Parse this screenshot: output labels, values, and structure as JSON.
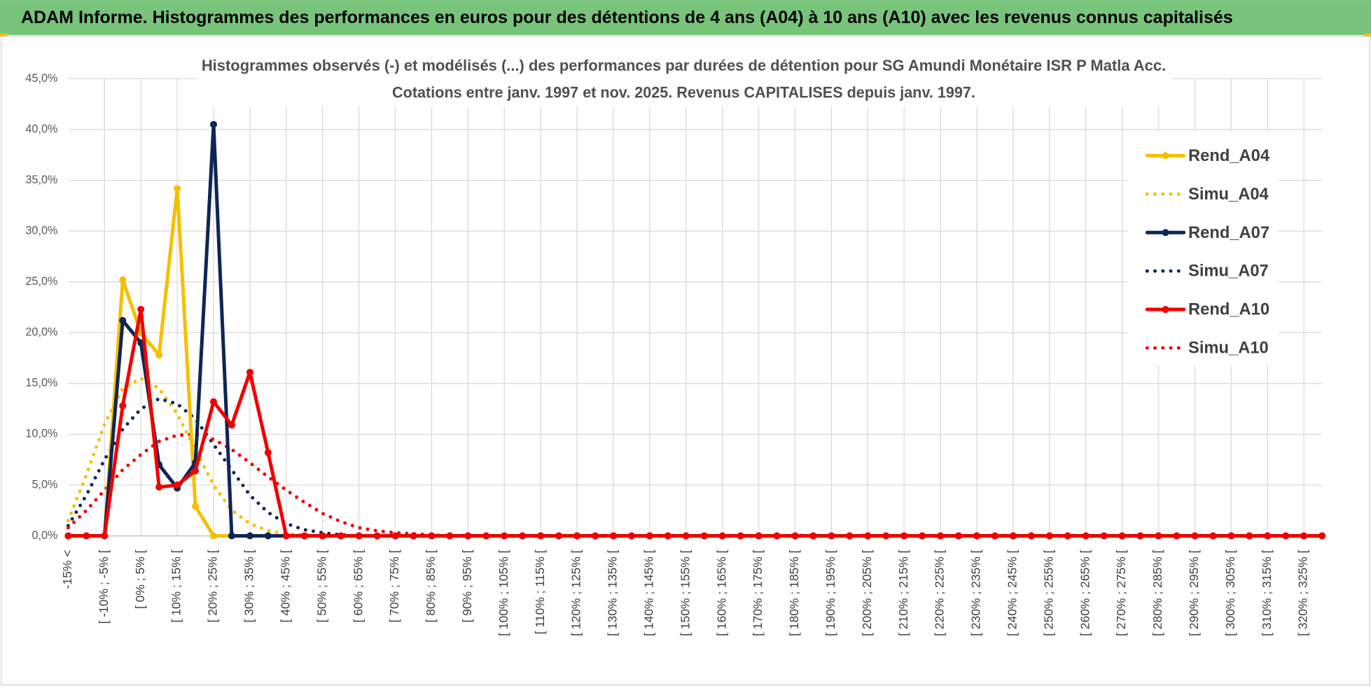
{
  "chart_data": {
    "type": "line",
    "header": "ADAM Informe. Histogrammes des performances en euros pour des détentions de 4 ans (A04) à 10 ans (A10) avec les revenus connus capitalisés",
    "title": "Histogrammes observés (-) et modélisés (...) des performances par durées de détention pour SG Amundi Monétaire ISR P Matla Acc.",
    "subtitle": "Cotations entre janv. 1997 et nov. 2025. Revenus CAPITALISES depuis janv. 1997.",
    "categories": [
      "-15% <",
      null,
      "[ -10% ; -5% [",
      null,
      "[ 0% ; 5% [",
      null,
      "[ 10% ; 15% [",
      null,
      "[ 20% ; 25% [",
      null,
      "[ 30% ; 35% [",
      null,
      "[ 40% ; 45% [",
      null,
      "[ 50% ; 55% [",
      null,
      "[ 60% ; 65% [",
      null,
      "[ 70% ; 75% [",
      null,
      "[ 80% ; 85% [",
      null,
      "[ 90% ; 95% [",
      null,
      "[ 100% ; 105% [",
      null,
      "[ 110% ; 115% [",
      null,
      "[ 120% ; 125% [",
      null,
      "[ 130% ; 135% [",
      null,
      "[ 140% ; 145% [",
      null,
      "[ 150% ; 155% [",
      null,
      "[ 160% ; 165% [",
      null,
      "[ 170% ; 175% [",
      null,
      "[ 180% ; 185% [",
      null,
      "[ 190% ; 195% [",
      null,
      "[ 200% ; 205% [",
      null,
      "[ 210% ; 215% [",
      null,
      "[ 220% ; 225% [",
      null,
      "[ 230% ; 235% [",
      null,
      "[ 240% ; 245% [",
      null,
      "[ 250% ; 255% [",
      null,
      "[ 260% ; 265% [",
      null,
      "[ 270% ; 275% [",
      null,
      "[ 280% ; 285% [",
      null,
      "[ 290% ; 295% [",
      null,
      "[ 300% ; 305% [",
      null,
      "[ 310% ; 315% [",
      null,
      "[ 320% ; 325% [",
      null
    ],
    "series": [
      {
        "name": "Rend_A04",
        "color": "#f5bf00",
        "style": "solid",
        "markers": true,
        "values": [
          0,
          0,
          0,
          25.2,
          20,
          17.8,
          34.2,
          2.9,
          0,
          0,
          0,
          0,
          0,
          0,
          0,
          0,
          0,
          0,
          0,
          0,
          0,
          0,
          0,
          0,
          0,
          0,
          0,
          0,
          0,
          0,
          0,
          0,
          0,
          0,
          0,
          0,
          0,
          0,
          0,
          0,
          0,
          0,
          0,
          0,
          0,
          0,
          0,
          0,
          0,
          0,
          0,
          0,
          0,
          0,
          0,
          0,
          0,
          0,
          0,
          0,
          0,
          0,
          0,
          0,
          0,
          0,
          0,
          0,
          0,
          0
        ]
      },
      {
        "name": "Simu_A04",
        "color": "#f5bf00",
        "style": "dotted",
        "markers": false,
        "values": [
          1.5,
          6,
          11,
          14.5,
          15.5,
          14.5,
          12,
          8.5,
          5,
          2.5,
          1.2,
          0.5,
          0.2,
          0.1,
          0,
          0,
          0,
          0,
          0,
          0,
          0,
          0,
          0,
          0,
          0,
          0,
          0,
          0,
          0,
          0,
          0,
          0,
          0,
          0,
          0,
          0,
          0,
          0,
          0,
          0,
          0,
          0,
          0,
          0,
          0,
          0,
          0,
          0,
          0,
          0,
          0,
          0,
          0,
          0,
          0,
          0,
          0,
          0,
          0,
          0,
          0,
          0,
          0,
          0,
          0,
          0,
          0,
          0,
          0,
          0
        ]
      },
      {
        "name": "Rend_A07",
        "color": "#0e2557",
        "style": "solid",
        "markers": true,
        "values": [
          0,
          0,
          0,
          21.2,
          19,
          7,
          4.7,
          7.2,
          40.5,
          0,
          0,
          0,
          0,
          0,
          0,
          0,
          0,
          0,
          0,
          0,
          0,
          0,
          0,
          0,
          0,
          0,
          0,
          0,
          0,
          0,
          0,
          0,
          0,
          0,
          0,
          0,
          0,
          0,
          0,
          0,
          0,
          0,
          0,
          0,
          0,
          0,
          0,
          0,
          0,
          0,
          0,
          0,
          0,
          0,
          0,
          0,
          0,
          0,
          0,
          0,
          0,
          0,
          0,
          0,
          0,
          0,
          0,
          0,
          0,
          0
        ]
      },
      {
        "name": "Simu_A07",
        "color": "#0e2557",
        "style": "dotted",
        "markers": false,
        "values": [
          1,
          4,
          7.5,
          10.5,
          12.5,
          13.5,
          13,
          11.5,
          9,
          6.5,
          4,
          2.3,
          1.2,
          0.6,
          0.3,
          0.1,
          0,
          0,
          0,
          0,
          0,
          0,
          0,
          0,
          0,
          0,
          0,
          0,
          0,
          0,
          0,
          0,
          0,
          0,
          0,
          0,
          0,
          0,
          0,
          0,
          0,
          0,
          0,
          0,
          0,
          0,
          0,
          0,
          0,
          0,
          0,
          0,
          0,
          0,
          0,
          0,
          0,
          0,
          0,
          0,
          0,
          0,
          0,
          0,
          0,
          0,
          0,
          0,
          0,
          0
        ]
      },
      {
        "name": "Rend_A10",
        "color": "#f00000",
        "style": "solid",
        "markers": true,
        "values": [
          0,
          0,
          0,
          12.8,
          22.3,
          4.8,
          5,
          6.4,
          13.2,
          10.9,
          16.1,
          8.2,
          0,
          0,
          0,
          0,
          0,
          0,
          0,
          0,
          0,
          0,
          0,
          0,
          0,
          0,
          0,
          0,
          0,
          0,
          0,
          0,
          0,
          0,
          0,
          0,
          0,
          0,
          0,
          0,
          0,
          0,
          0,
          0,
          0,
          0,
          0,
          0,
          0,
          0,
          0,
          0,
          0,
          0,
          0,
          0,
          0,
          0,
          0,
          0,
          0,
          0,
          0,
          0,
          0,
          0,
          0,
          0,
          0,
          0
        ]
      },
      {
        "name": "Simu_A10",
        "color": "#f00000",
        "style": "dotted",
        "markers": false,
        "values": [
          0.8,
          2.5,
          4.5,
          6.5,
          8,
          9.3,
          9.9,
          10,
          9.5,
          8.5,
          7.2,
          5.8,
          4.5,
          3.3,
          2.2,
          1.4,
          0.8,
          0.5,
          0.3,
          0.2,
          0.1,
          0,
          0,
          0,
          0,
          0,
          0,
          0,
          0,
          0,
          0,
          0,
          0,
          0,
          0,
          0,
          0,
          0,
          0,
          0,
          0,
          0,
          0,
          0,
          0,
          0,
          0,
          0,
          0,
          0,
          0,
          0,
          0,
          0,
          0,
          0,
          0,
          0,
          0,
          0,
          0,
          0,
          0,
          0,
          0,
          0,
          0,
          0,
          0,
          0
        ]
      }
    ],
    "ylim": [
      0,
      45
    ],
    "yticks": [
      {
        "value": 0,
        "label": "0,0%"
      },
      {
        "value": 5,
        "label": "5,0%"
      },
      {
        "value": 10,
        "label": "10,0%"
      },
      {
        "value": 15,
        "label": "15,0%"
      },
      {
        "value": 20,
        "label": "20,0%"
      },
      {
        "value": 25,
        "label": "25,0%"
      },
      {
        "value": 30,
        "label": "30,0%"
      },
      {
        "value": 35,
        "label": "35,0%"
      },
      {
        "value": 40,
        "label": "40,0%"
      },
      {
        "value": 45,
        "label": "45,0%"
      }
    ],
    "grid": true,
    "legend": "right"
  }
}
